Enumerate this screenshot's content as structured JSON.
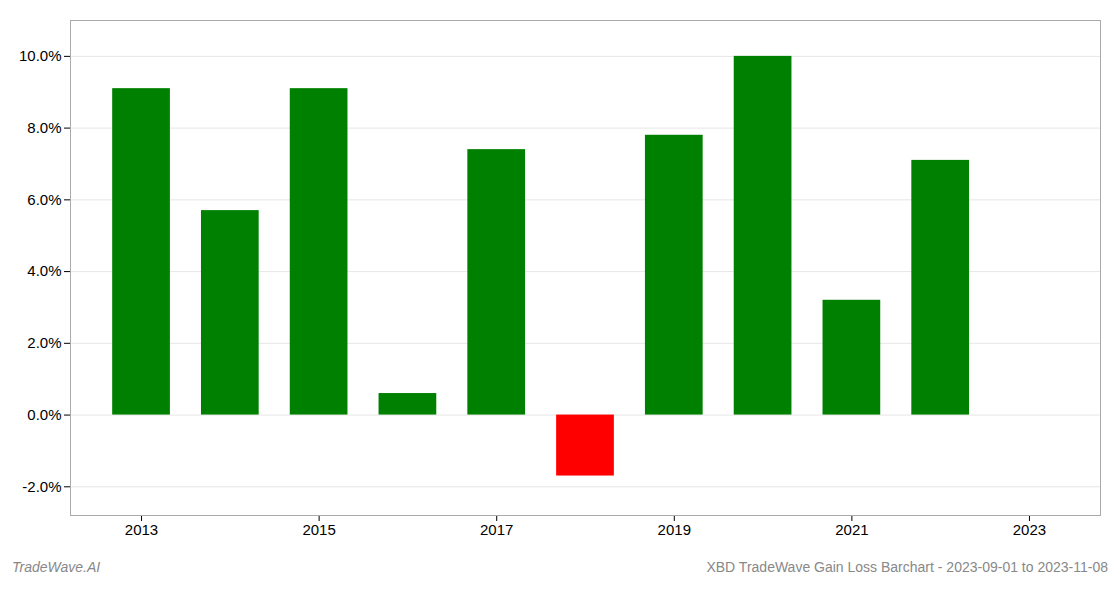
{
  "chart_data": {
    "type": "bar",
    "x": [
      2013,
      2014,
      2015,
      2016,
      2017,
      2018,
      2019,
      2020,
      2021,
      2022
    ],
    "values": [
      0.091,
      0.057,
      0.091,
      0.006,
      0.074,
      -0.017,
      0.078,
      0.1,
      0.032,
      0.071
    ],
    "colors": [
      "#008000",
      "#008000",
      "#008000",
      "#008000",
      "#008000",
      "#ff0000",
      "#008000",
      "#008000",
      "#008000",
      "#008000"
    ],
    "xlim": [
      2012.2,
      2023.8
    ],
    "xticks": [
      2013,
      2015,
      2017,
      2019,
      2021,
      2023
    ],
    "ylim": [
      -0.028,
      0.11
    ],
    "yticks": [
      {
        "value": -0.02,
        "label": "-2.0%"
      },
      {
        "value": 0.0,
        "label": "0.0%"
      },
      {
        "value": 0.02,
        "label": "2.0%"
      },
      {
        "value": 0.04,
        "label": "4.0%"
      },
      {
        "value": 0.06,
        "label": "6.0%"
      },
      {
        "value": 0.08,
        "label": "8.0%"
      },
      {
        "value": 0.1,
        "label": "10.0%"
      }
    ],
    "grid": true,
    "annotations": [
      "TradeWave.AI",
      "XBD TradeWave Gain Loss Barchart - 2023-09-01 to 2023-11-08"
    ]
  }
}
